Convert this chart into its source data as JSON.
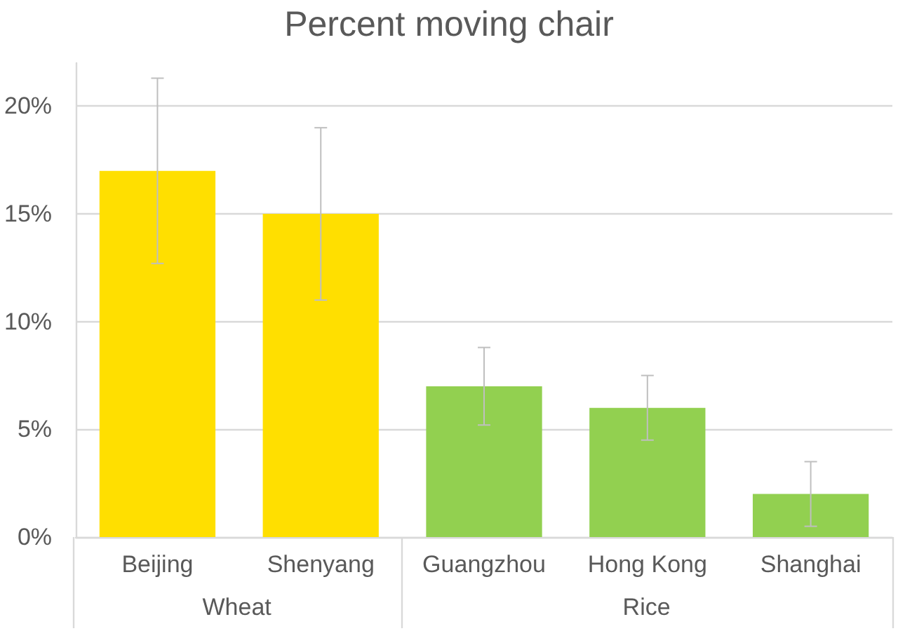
{
  "chart_data": {
    "type": "bar",
    "title": "Percent moving chair",
    "categories": [
      "Beijing",
      "Shenyang",
      "Guangzhou",
      "Hong Kong",
      "Shanghai"
    ],
    "series": [
      {
        "name": "Wheat",
        "color": "#ffdf00",
        "values": [
          17,
          15,
          null,
          null,
          null
        ],
        "errors": [
          4.3,
          4,
          null,
          null,
          null
        ]
      },
      {
        "name": "Rice",
        "color": "#92d050",
        "values": [
          null,
          null,
          7,
          6,
          2
        ],
        "errors": [
          null,
          null,
          1.8,
          1.5,
          1.5
        ]
      }
    ],
    "ylim": [
      0,
      22
    ],
    "yticks": [
      {
        "value": 0,
        "label": "0%"
      },
      {
        "value": 5,
        "label": "5%"
      },
      {
        "value": 10,
        "label": "10%"
      },
      {
        "value": 15,
        "label": "15%"
      },
      {
        "value": 20,
        "label": "20%"
      }
    ],
    "grid": "y",
    "legend": false
  }
}
